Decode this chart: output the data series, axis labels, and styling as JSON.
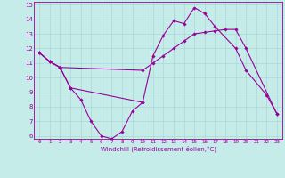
{
  "xlabel": "Windchill (Refroidissement éolien,°C)",
  "xlim": [
    -0.5,
    23.5
  ],
  "ylim": [
    5.8,
    15.2
  ],
  "xticks": [
    0,
    1,
    2,
    3,
    4,
    5,
    6,
    7,
    8,
    9,
    10,
    11,
    12,
    13,
    14,
    15,
    16,
    17,
    18,
    19,
    20,
    21,
    22,
    23
  ],
  "yticks": [
    6,
    7,
    8,
    9,
    10,
    11,
    12,
    13,
    14,
    15
  ],
  "bg_color": "#c6ecea",
  "line_color": "#990099",
  "grid_color": "#a8d8d8",
  "series": [
    {
      "x": [
        0,
        1,
        2,
        3,
        4,
        5,
        6,
        7,
        8,
        9,
        10
      ],
      "y": [
        11.7,
        11.1,
        10.7,
        9.3,
        8.5,
        7.0,
        6.0,
        5.8,
        6.3,
        7.7,
        8.3
      ]
    },
    {
      "x": [
        0,
        1,
        2,
        3,
        10,
        11,
        12,
        13,
        14,
        15,
        16,
        17,
        19,
        20,
        22,
        23
      ],
      "y": [
        11.7,
        11.1,
        10.7,
        9.3,
        8.3,
        11.5,
        12.9,
        13.9,
        13.7,
        14.8,
        14.4,
        13.5,
        12.0,
        10.5,
        8.8,
        7.5
      ]
    },
    {
      "x": [
        0,
        1,
        2,
        10,
        11,
        12,
        13,
        14,
        15,
        16,
        17,
        18,
        19,
        20,
        23
      ],
      "y": [
        11.7,
        11.1,
        10.7,
        10.5,
        11.0,
        11.5,
        12.0,
        12.5,
        13.0,
        13.1,
        13.2,
        13.3,
        13.3,
        12.0,
        7.5
      ]
    }
  ]
}
